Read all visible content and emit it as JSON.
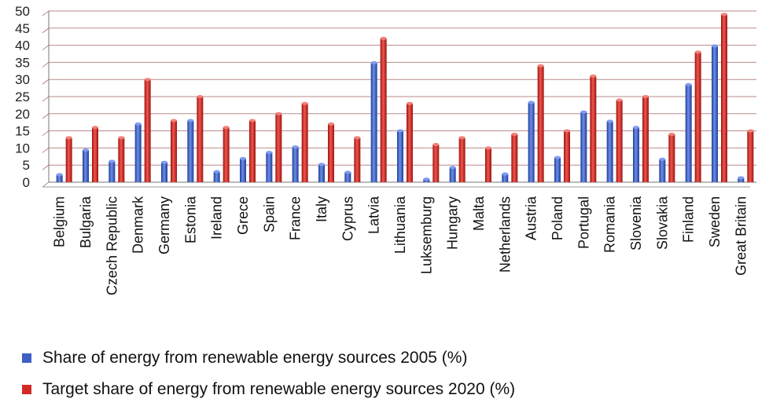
{
  "chart_data": {
    "type": "bar",
    "categories": [
      "Belgium",
      "Bulgaria",
      "Czech Republic",
      "Denmark",
      "Germany",
      "Estonia",
      "Ireland",
      "Grece",
      "Spain",
      "France",
      "Italy",
      "Cyprus",
      "Latvia",
      "Lithuania",
      "Luksemburg",
      "Hungary",
      "Malta",
      "Netherlands",
      "Austria",
      "Poland",
      "Portugal",
      "Romania",
      "Slovenia",
      "Slovakia",
      "Finland",
      "Sweden",
      "Great Britain"
    ],
    "series": [
      {
        "name": "Share of energy from renewable energy sources 2005 (%)",
        "color": "#3b5fc4",
        "values": [
          2.2,
          9.4,
          6.1,
          17,
          5.8,
          18,
          3.1,
          6.9,
          8.7,
          10.3,
          5.2,
          2.9,
          34.9,
          15,
          0.9,
          4.3,
          0,
          2.4,
          23.3,
          7.2,
          20.5,
          17.8,
          16,
          6.7,
          28.5,
          39.8,
          1.3
        ]
      },
      {
        "name": "Target share of energy from renewable energy sources 2020 (%)",
        "color": "#d42a24",
        "values": [
          13,
          16,
          13,
          30,
          18,
          25,
          16,
          18,
          20,
          23,
          17,
          13,
          42,
          23,
          11,
          13,
          10,
          14,
          34,
          15,
          31,
          24,
          25,
          14,
          38,
          49,
          15
        ]
      }
    ],
    "ylim": [
      0,
      50
    ],
    "yticks": [
      "0",
      "5",
      "10",
      "15",
      "20",
      "25",
      "30",
      "35",
      "40",
      "45",
      "50"
    ],
    "grid": true,
    "legend_position": "bottom"
  }
}
